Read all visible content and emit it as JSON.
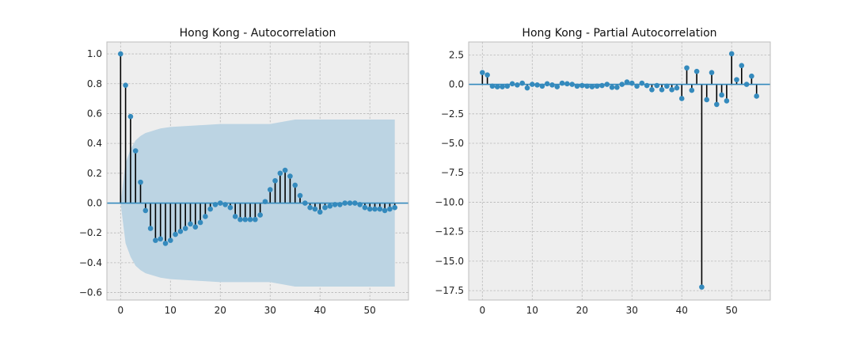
{
  "chart_data": [
    {
      "type": "stem",
      "title": "Hong Kong - Autocorrelation",
      "xlabel": "",
      "ylabel": "",
      "xlim": [
        -2.75,
        57.75
      ],
      "ylim": [
        -0.65,
        1.08
      ],
      "xticks": [
        0,
        10,
        20,
        30,
        40,
        50
      ],
      "yticks": [
        -0.6,
        -0.4,
        -0.2,
        0.0,
        0.2,
        0.4,
        0.6,
        0.8,
        1.0
      ],
      "ytick_labels": [
        "−0.6",
        "−0.4",
        "−0.2",
        "0.0",
        "0.2",
        "0.4",
        "0.6",
        "0.8",
        "1.0"
      ],
      "xtick_labels": [
        "0",
        "10",
        "20",
        "30",
        "40",
        "50"
      ],
      "grid": true,
      "lags": [
        0,
        1,
        2,
        3,
        4,
        5,
        6,
        7,
        8,
        9,
        10,
        11,
        12,
        13,
        14,
        15,
        16,
        17,
        18,
        19,
        20,
        21,
        22,
        23,
        24,
        25,
        26,
        27,
        28,
        29,
        30,
        31,
        32,
        33,
        34,
        35,
        36,
        37,
        38,
        39,
        40,
        41,
        42,
        43,
        44,
        45,
        46,
        47,
        48,
        49,
        50,
        51,
        52,
        53,
        54,
        55
      ],
      "values": [
        1.0,
        0.79,
        0.58,
        0.35,
        0.14,
        -0.05,
        -0.17,
        -0.25,
        -0.24,
        -0.27,
        -0.25,
        -0.21,
        -0.19,
        -0.17,
        -0.14,
        -0.16,
        -0.13,
        -0.09,
        -0.04,
        -0.01,
        0.0,
        -0.01,
        -0.03,
        -0.09,
        -0.11,
        -0.11,
        -0.11,
        -0.11,
        -0.08,
        0.01,
        0.09,
        0.15,
        0.2,
        0.22,
        0.18,
        0.12,
        0.05,
        0.0,
        -0.03,
        -0.04,
        -0.06,
        -0.03,
        -0.02,
        -0.01,
        -0.01,
        0.0,
        0.0,
        0.0,
        -0.01,
        -0.03,
        -0.04,
        -0.04,
        -0.04,
        -0.05,
        -0.04,
        -0.03
      ],
      "confidence_band": {
        "lags": [
          0,
          1,
          2,
          3,
          4,
          5,
          6,
          7,
          8,
          10,
          15,
          20,
          25,
          30,
          35,
          40,
          45,
          50,
          55
        ],
        "upper": [
          0.0,
          0.27,
          0.36,
          0.42,
          0.45,
          0.47,
          0.48,
          0.49,
          0.5,
          0.51,
          0.52,
          0.53,
          0.53,
          0.53,
          0.56,
          0.56,
          0.56,
          0.56,
          0.56
        ]
      }
    },
    {
      "type": "stem",
      "title": "Hong Kong - Partial Autocorrelation",
      "xlabel": "",
      "ylabel": "",
      "xlim": [
        -2.75,
        57.75
      ],
      "ylim": [
        -18.3,
        3.6
      ],
      "xticks": [
        0,
        10,
        20,
        30,
        40,
        50
      ],
      "yticks": [
        -17.5,
        -15.0,
        -12.5,
        -10.0,
        -7.5,
        -5.0,
        -2.5,
        0.0,
        2.5
      ],
      "ytick_labels": [
        "−17.5",
        "−15.0",
        "−12.5",
        "−10.0",
        "−7.5",
        "−5.0",
        "−2.5",
        "0.0",
        "2.5"
      ],
      "xtick_labels": [
        "0",
        "10",
        "20",
        "30",
        "40",
        "50"
      ],
      "grid": true,
      "lags": [
        0,
        1,
        2,
        3,
        4,
        5,
        6,
        7,
        8,
        9,
        10,
        11,
        12,
        13,
        14,
        15,
        16,
        17,
        18,
        19,
        20,
        21,
        22,
        23,
        24,
        25,
        26,
        27,
        28,
        29,
        30,
        31,
        32,
        33,
        34,
        35,
        36,
        37,
        38,
        39,
        40,
        41,
        42,
        43,
        44,
        45,
        46,
        47,
        48,
        49,
        50,
        51,
        52,
        53,
        54,
        55
      ],
      "values": [
        1.0,
        0.8,
        -0.15,
        -0.2,
        -0.2,
        -0.15,
        0.05,
        -0.05,
        0.1,
        -0.3,
        0.0,
        -0.05,
        -0.15,
        0.05,
        -0.05,
        -0.2,
        0.1,
        0.05,
        0.0,
        -0.15,
        -0.1,
        -0.15,
        -0.2,
        -0.15,
        -0.1,
        0.0,
        -0.25,
        -0.25,
        0.0,
        0.2,
        0.1,
        -0.15,
        0.1,
        -0.1,
        -0.45,
        -0.1,
        -0.45,
        -0.15,
        -0.45,
        -0.3,
        -1.2,
        1.4,
        -0.5,
        1.1,
        -17.2,
        -1.3,
        1.0,
        -1.7,
        -0.9,
        -1.4,
        2.6,
        0.4,
        1.6,
        0.0,
        0.7,
        -1.0
      ]
    }
  ]
}
